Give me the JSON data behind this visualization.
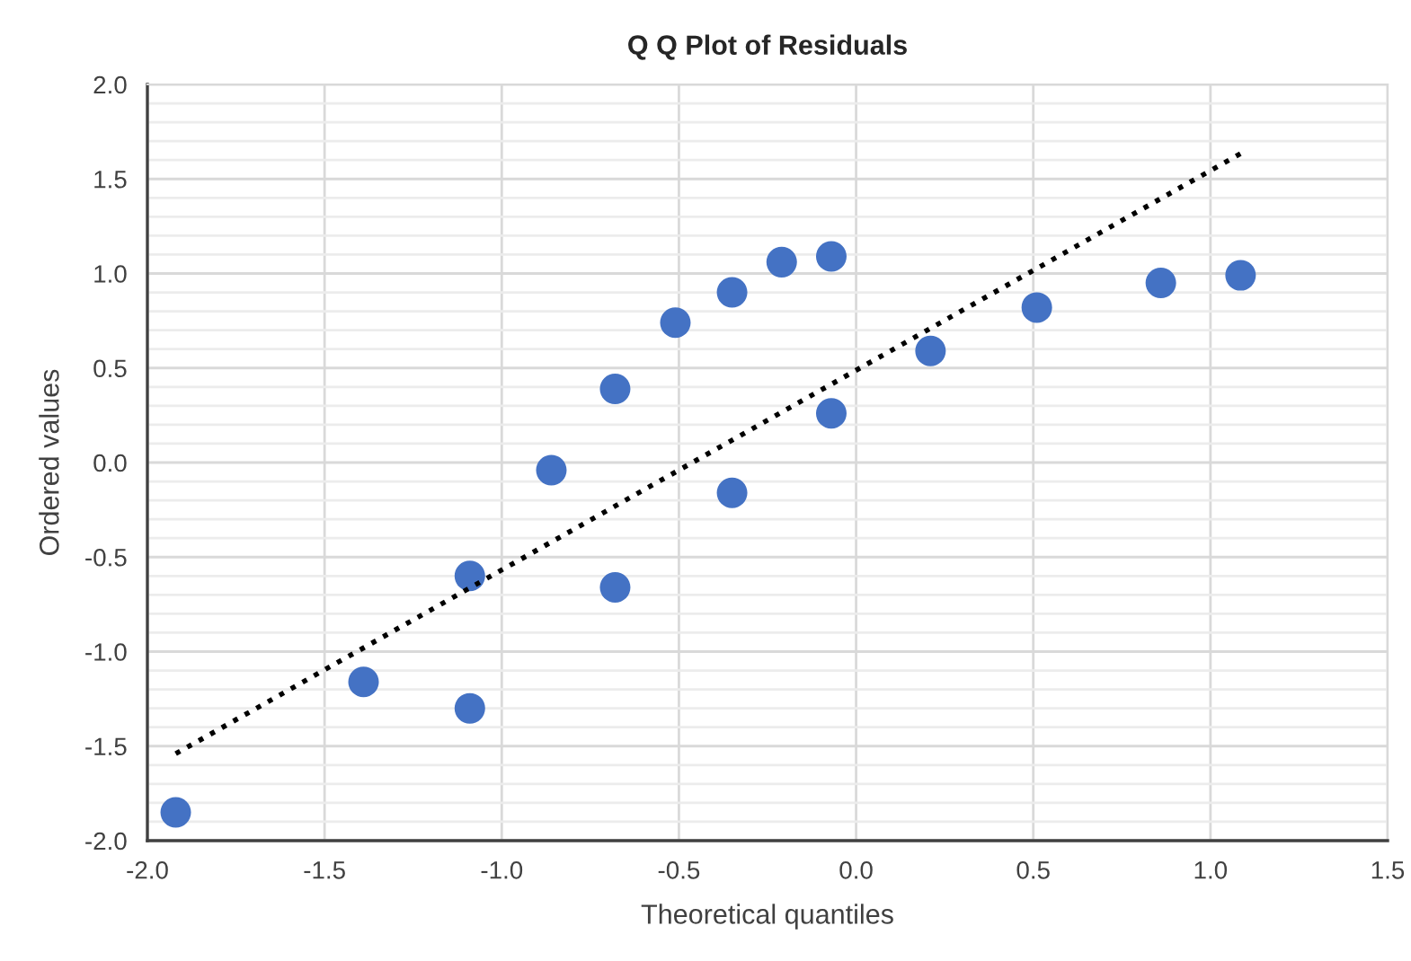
{
  "chart_data": {
    "type": "scatter",
    "title": "Q Q Plot of Residuals",
    "xlabel": "Theoretical quantiles",
    "ylabel": "Ordered values",
    "series": [
      {
        "color": "#4472c4",
        "marker": "circle",
        "x": [
          -1.92,
          -1.39,
          -1.09,
          -1.09,
          -0.86,
          -0.68,
          -0.68,
          -0.51,
          -0.35,
          -0.35,
          -0.21,
          -0.07,
          -0.07,
          0.21,
          0.51,
          0.86,
          1.085
        ],
        "values": [
          -1.85,
          -1.16,
          -0.6,
          -1.3,
          -0.04,
          -0.66,
          0.39,
          0.74,
          0.9,
          -0.16,
          1.06,
          1.09,
          0.26,
          0.59,
          0.82,
          0.95,
          0.99
        ]
      },
      {
        "type": "line",
        "color": "#000000",
        "line_style": "dotted",
        "marker": "none",
        "x": [
          -1.92,
          1.1
        ],
        "values": [
          -1.54,
          1.65
        ]
      }
    ],
    "xlim": [
      -2.0,
      1.5
    ],
    "ylim": [
      -2.0,
      2.0
    ],
    "xticks": [
      {
        "value": -2.0,
        "label": "-2.0"
      },
      {
        "value": -1.5,
        "label": "-1.5"
      },
      {
        "value": -1.0,
        "label": "-1.0"
      },
      {
        "value": -0.5,
        "label": "-0.5"
      },
      {
        "value": 0.0,
        "label": "0.0"
      },
      {
        "value": 0.5,
        "label": "0.5"
      },
      {
        "value": 1.0,
        "label": "1.0"
      },
      {
        "value": 1.5,
        "label": "1.5"
      }
    ],
    "yticks": [
      {
        "value": -2.0,
        "label": "-2.0"
      },
      {
        "value": -1.9,
        "label": null
      },
      {
        "value": -1.8,
        "label": null
      },
      {
        "value": -1.7,
        "label": null
      },
      {
        "value": -1.6,
        "label": null
      },
      {
        "value": -1.5,
        "label": "-1.5"
      },
      {
        "value": -1.4,
        "label": null
      },
      {
        "value": -1.3,
        "label": null
      },
      {
        "value": -1.2,
        "label": null
      },
      {
        "value": -1.1,
        "label": null
      },
      {
        "value": -1.0,
        "label": "-1.0"
      },
      {
        "value": -0.9,
        "label": null
      },
      {
        "value": -0.8,
        "label": null
      },
      {
        "value": -0.7,
        "label": null
      },
      {
        "value": -0.6,
        "label": null
      },
      {
        "value": -0.5,
        "label": "-0.5"
      },
      {
        "value": -0.4,
        "label": null
      },
      {
        "value": -0.3,
        "label": null
      },
      {
        "value": -0.2,
        "label": null
      },
      {
        "value": -0.1,
        "label": null
      },
      {
        "value": 0.0,
        "label": "0.0"
      },
      {
        "value": 0.1,
        "label": null
      },
      {
        "value": 0.2,
        "label": null
      },
      {
        "value": 0.3,
        "label": null
      },
      {
        "value": 0.4,
        "label": null
      },
      {
        "value": 0.5,
        "label": "0.5"
      },
      {
        "value": 0.6,
        "label": null
      },
      {
        "value": 0.7,
        "label": null
      },
      {
        "value": 0.8,
        "label": null
      },
      {
        "value": 0.9,
        "label": null
      },
      {
        "value": 1.0,
        "label": "1.0"
      },
      {
        "value": 1.1,
        "label": null
      },
      {
        "value": 1.2,
        "label": null
      },
      {
        "value": 1.3,
        "label": null
      },
      {
        "value": 1.4,
        "label": null
      },
      {
        "value": 1.5,
        "label": "1.5"
      },
      {
        "value": 1.6,
        "label": null
      },
      {
        "value": 1.7,
        "label": null
      },
      {
        "value": 1.8,
        "label": null
      },
      {
        "value": 1.9,
        "label": null
      },
      {
        "value": 2.0,
        "label": "2.0"
      }
    ],
    "grid": true
  }
}
